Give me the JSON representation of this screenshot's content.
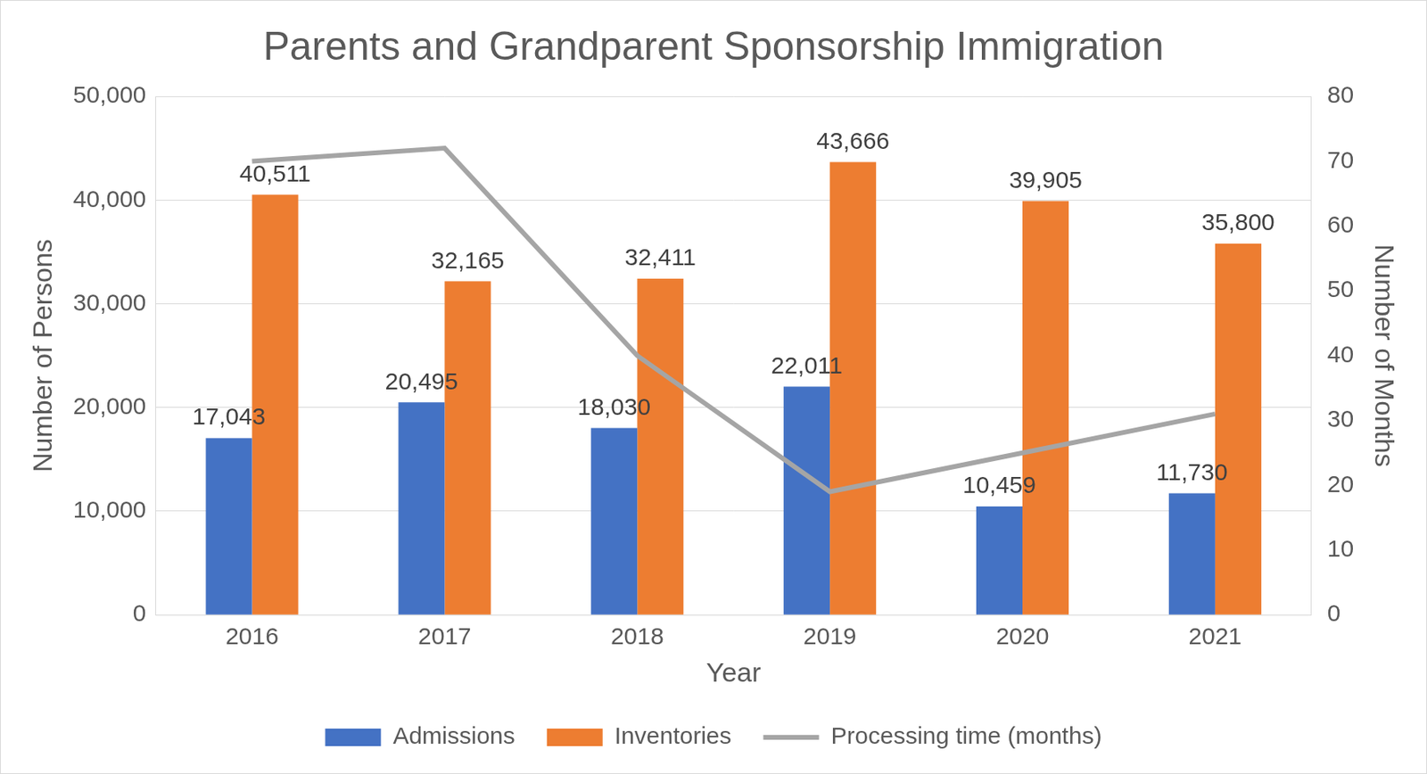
{
  "chart_data": {
    "type": "bar",
    "title": "Parents and Grandparent Sponsorship Immigration",
    "x_label": "Year",
    "y_label": "Number of Persons",
    "y2_label": "Number of Months",
    "categories": [
      "2016",
      "2017",
      "2018",
      "2019",
      "2020",
      "2021"
    ],
    "series": [
      {
        "name": "Admissions",
        "type": "bar",
        "color": "#4472C4",
        "values": [
          17043,
          20495,
          18030,
          22011,
          10459,
          11730
        ],
        "value_labels": [
          "17,043",
          "20,495",
          "18,030",
          "22,011",
          "10,459",
          "11,730"
        ],
        "data_labels": true
      },
      {
        "name": "Inventories",
        "type": "bar",
        "color": "#ED7D31",
        "values": [
          40511,
          32165,
          32411,
          43666,
          39905,
          35800
        ],
        "value_labels": [
          "40,511",
          "32,165",
          "32,411",
          "43,666",
          "39,905",
          "35,800"
        ],
        "data_labels": true
      },
      {
        "name": "Processing time (months)",
        "type": "line",
        "color": "#A5A5A5",
        "axis": "y2",
        "values": [
          70,
          72,
          40,
          19,
          25,
          31
        ],
        "marker": "none",
        "line_style": "solid",
        "data_labels": false
      }
    ],
    "ylim": [
      0,
      50000
    ],
    "yticks": [
      0,
      {
        "value": 10000,
        "label": "10,000"
      },
      {
        "value": 20000,
        "label": "20,000"
      },
      {
        "value": 30000,
        "label": "30,000"
      },
      {
        "value": 40000,
        "label": "40,000"
      },
      {
        "value": 50000,
        "label": "50,000"
      }
    ],
    "y2lim": [
      0,
      80
    ],
    "y2ticks": [
      0,
      10,
      20,
      30,
      40,
      50,
      60,
      70,
      80
    ],
    "grid": true,
    "legend": "bottom"
  }
}
